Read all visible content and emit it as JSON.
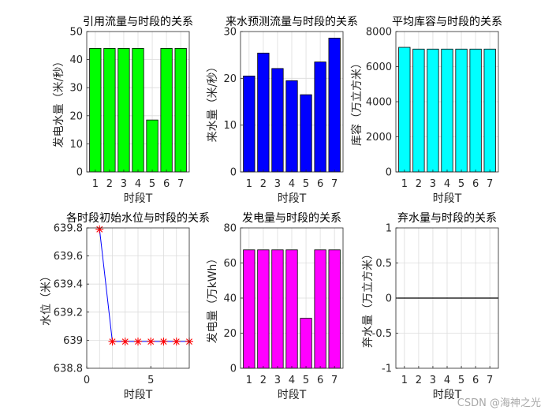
{
  "watermark": "CSDN @海神之光",
  "chart_data": [
    {
      "type": "bar",
      "title": "引用流量与时段的关系",
      "xlabel": "时段T",
      "ylabel": "发电水量（米/秒）",
      "categories": [
        "1",
        "2",
        "3",
        "4",
        "5",
        "6",
        "7"
      ],
      "values": [
        44,
        44,
        44,
        44,
        18.5,
        44,
        44
      ],
      "ylim": [
        0,
        50
      ],
      "yticks": [
        0,
        10,
        20,
        30,
        40,
        50
      ],
      "color": "#00ff00",
      "grid": true
    },
    {
      "type": "bar",
      "title": "来水预测流量与时段的关系",
      "xlabel": "时段T",
      "ylabel": "来水量（米/秒）",
      "categories": [
        "1",
        "2",
        "3",
        "4",
        "5",
        "6",
        "7"
      ],
      "values": [
        20.5,
        25.4,
        22.1,
        19.5,
        16.5,
        23.5,
        28.6
      ],
      "ylim": [
        0,
        30
      ],
      "yticks": [
        0,
        10,
        20,
        30
      ],
      "color": "#0000ff",
      "grid": true
    },
    {
      "type": "bar",
      "title": "平均库容与时段的关系",
      "xlabel": "时段T",
      "ylabel": "库容（万立方米）",
      "categories": [
        "1",
        "2",
        "3",
        "4",
        "5",
        "6",
        "7"
      ],
      "values": [
        7100,
        7000,
        7000,
        7000,
        7000,
        7000,
        7000
      ],
      "ylim": [
        0,
        8000
      ],
      "yticks": [
        0,
        2000,
        4000,
        6000,
        8000
      ],
      "color": "#00ffff",
      "grid": true
    },
    {
      "type": "line",
      "title": "各时段初始水位与时段的关系",
      "xlabel": "时段T",
      "ylabel": "水位（米）",
      "x": [
        1,
        2,
        3,
        4,
        5,
        6,
        7,
        8
      ],
      "y": [
        639.79,
        638.99,
        638.99,
        638.99,
        638.99,
        638.99,
        638.99,
        638.99
      ],
      "xlim": [
        0,
        8
      ],
      "xticks": [
        0,
        5
      ],
      "ylim": [
        638.8,
        639.8
      ],
      "yticks": [
        638.8,
        639,
        639.2,
        639.4,
        639.6,
        639.8
      ],
      "ytick_labels": [
        "638.8",
        "639",
        "639.2",
        "639.4",
        "639.6",
        "639.8"
      ],
      "line_color": "#0000ff",
      "marker": "*",
      "marker_color": "#ff0000",
      "grid": true
    },
    {
      "type": "bar",
      "title": "发电量与时段的关系",
      "xlabel": "时段T",
      "ylabel": "发电量（万kWh）",
      "categories": [
        "1",
        "2",
        "3",
        "4",
        "5",
        "6",
        "7"
      ],
      "values": [
        67.5,
        67.5,
        67.5,
        67.5,
        28.5,
        67.5,
        67.5
      ],
      "ylim": [
        0,
        80
      ],
      "yticks": [
        0,
        20,
        40,
        60,
        80
      ],
      "color": "#ff00ff",
      "grid": true
    },
    {
      "type": "bar",
      "title": "弃水量与时段的关系",
      "xlabel": "时段T",
      "ylabel": "弃水量（万立方米）",
      "categories": [
        "1",
        "2",
        "3",
        "4",
        "5",
        "6",
        "7"
      ],
      "values": [
        0,
        0,
        0,
        0,
        0,
        0,
        0
      ],
      "ylim": [
        -1,
        1
      ],
      "yticks": [
        -1,
        -0.5,
        0,
        0.5,
        1
      ],
      "ytick_labels": [
        "-1",
        "-0.5",
        "0",
        "0.5",
        "1"
      ],
      "color": "#000000",
      "grid": true
    }
  ]
}
